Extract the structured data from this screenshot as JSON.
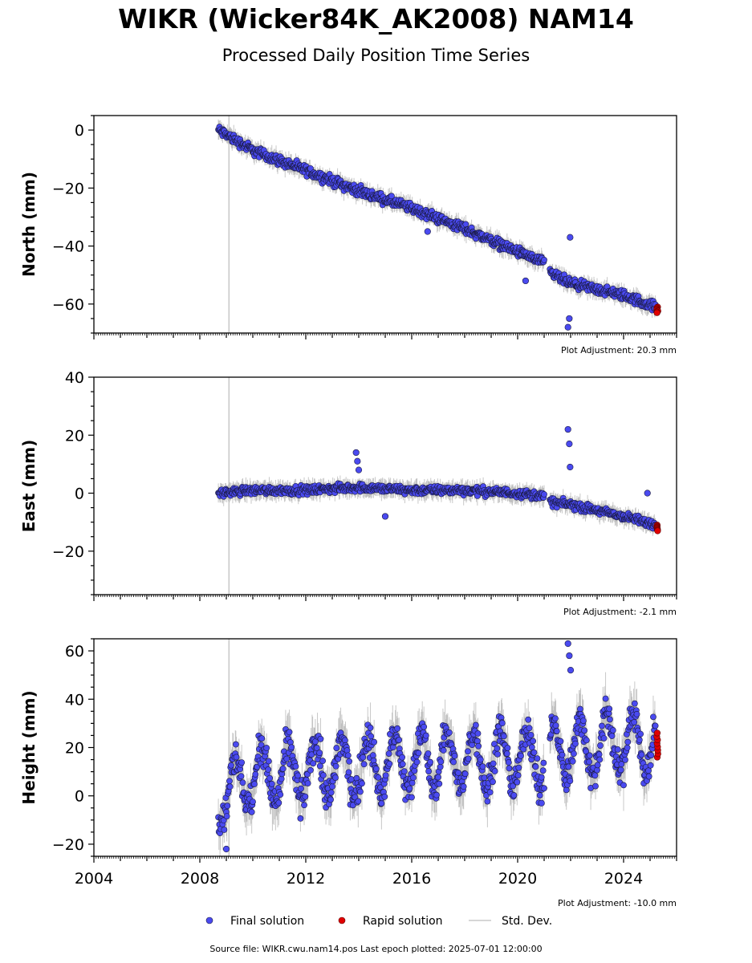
{
  "title": "WIKR (Wicker84K_AK2008) NAM14",
  "subtitle": "Processed Daily Position Time Series",
  "source_line": "Source file: WIKR.cwu.nam14.pos  Last epoch plotted: 2025-07-01 12:00:00",
  "colors": {
    "final": "#4a4af0",
    "final_edge": "#1a1a40",
    "rapid": "#e00000",
    "std": "#b0b0b0",
    "marker_line": "#c8c8c8"
  },
  "chart_data": [
    {
      "type": "scatter",
      "ylabel": "North (mm)",
      "ylim": [
        -70,
        5
      ],
      "yticks": [
        0,
        -20,
        -40,
        -60
      ],
      "xlim": [
        2004,
        2026
      ],
      "adjustment": "Plot Adjustment: 20.3 mm",
      "grid": false,
      "final_trend": {
        "x": [
          2008.7,
          2010,
          2012,
          2014,
          2016,
          2018,
          2020,
          2021.0,
          2021.2,
          2022,
          2024,
          2025.2
        ],
        "y": [
          0,
          -7,
          -14,
          -21,
          -27,
          -34,
          -42,
          -46,
          -49,
          -53,
          -57,
          -61
        ]
      },
      "outliers": {
        "x": [
          2021.9,
          2021.95,
          2021.98,
          2020.3,
          2016.6
        ],
        "y": [
          -68,
          -65,
          -37,
          -52,
          -35
        ]
      },
      "rapid": {
        "x": [
          2025.25,
          2025.3
        ],
        "y": [
          -61,
          -63
        ]
      },
      "vertical_marker_x": 2009.1
    },
    {
      "type": "scatter",
      "ylabel": "East (mm)",
      "ylim": [
        -35,
        40
      ],
      "yticks": [
        40,
        20,
        0,
        -20
      ],
      "xlim": [
        2004,
        2026
      ],
      "adjustment": "Plot Adjustment: -2.1 mm",
      "grid": false,
      "final_trend": {
        "x": [
          2008.7,
          2010,
          2012,
          2014,
          2016,
          2018,
          2020,
          2021.0,
          2021.2,
          2022,
          2024,
          2025.2
        ],
        "y": [
          0,
          1,
          1,
          2,
          1,
          1,
          0,
          -1,
          -3,
          -4,
          -8,
          -11
        ]
      },
      "outliers": {
        "x": [
          2013.9,
          2013.95,
          2014.0,
          2021.9,
          2021.95,
          2021.98,
          2024.9,
          2015.0
        ],
        "y": [
          14,
          11,
          8,
          22,
          17,
          9,
          0,
          -8
        ]
      },
      "rapid": {
        "x": [
          2025.25,
          2025.3
        ],
        "y": [
          -11,
          -13
        ]
      },
      "vertical_marker_x": 2009.1
    },
    {
      "type": "scatter",
      "ylabel": "Height (mm)",
      "ylim": [
        -25,
        65
      ],
      "yticks": [
        60,
        40,
        20,
        0,
        -20
      ],
      "xlim": [
        2004,
        2026
      ],
      "xticks": [
        2004,
        2008,
        2012,
        2016,
        2020,
        2024
      ],
      "adjustment": "Plot Adjustment: -10.0 mm",
      "grid": false,
      "final_trend": {
        "x": [
          2008.7,
          2010,
          2012,
          2014,
          2016,
          2018,
          2020,
          2021.0,
          2021.2,
          2022,
          2024,
          2025.2
        ],
        "y": [
          2,
          8,
          10,
          12,
          14,
          15,
          16,
          16,
          17,
          20,
          22,
          22
        ]
      },
      "seasonal_amplitude": 12,
      "outliers": {
        "x": [
          2021.9,
          2021.95,
          2022.0,
          2009.0,
          2020.9
        ],
        "y": [
          63,
          58,
          52,
          -22,
          -3
        ]
      },
      "rapid": {
        "x": [
          2025.25,
          2025.3
        ],
        "y": [
          16,
          26
        ]
      },
      "vertical_marker_x": 2009.1
    }
  ],
  "legend": [
    {
      "label": "Final solution",
      "kind": "final"
    },
    {
      "label": "Rapid solution",
      "kind": "rapid"
    },
    {
      "label": "Std. Dev.",
      "kind": "std"
    }
  ]
}
